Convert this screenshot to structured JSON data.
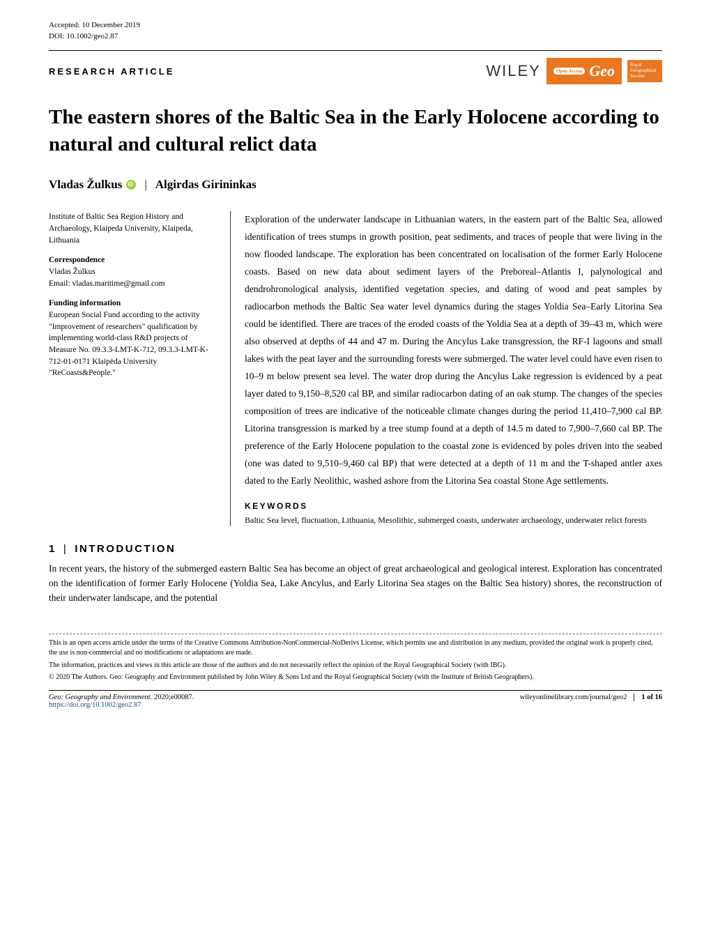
{
  "meta": {
    "accepted": "Accepted: 10 December 2019",
    "doi": "DOI: 10.1002/geo2.87",
    "article_type": "RESEARCH ARTICLE"
  },
  "brand": {
    "wiley": "WILEY",
    "open_access": "Open Access",
    "geo": "Geo",
    "rgs": "Royal Geographical Society"
  },
  "title": "The eastern shores of the Baltic Sea in the Early Holocene according to natural and cultural relict data",
  "authors": {
    "a1": "Vladas Žulkus",
    "a2": "Algirdas Girininkas"
  },
  "affiliation": "Institute of Baltic Sea Region History and Archaeology, Klaipeda University, Klaipeda, Lithuania",
  "correspondence": {
    "heading": "Correspondence",
    "name": "Vladas Žulkus",
    "email": "Email: vladas.maritime@gmail.com"
  },
  "funding": {
    "heading": "Funding information",
    "text": "European Social Fund according to the activity \"Improvement of researchers\" qualification by implementing world-class R&D projects of Measure No. 09.3.3-LMT-K-712, 09.3.3-LMT-K-712-01-0171 Klaipėda University \"ReCoasts&People.\""
  },
  "abstract": "Exploration of the underwater landscape in Lithuanian waters, in the eastern part of the Baltic Sea, allowed identification of trees stumps in growth position, peat sediments, and traces of people that were living in the now flooded landscape. The exploration has been concentrated on localisation of the former Early Holocene coasts. Based on new data about sediment layers of the Preboreal–Atlantis I, palynological and dendrohronological analysis, identified vegetation species, and dating of wood and peat samples by radiocarbon methods the Baltic Sea water level dynamics during the stages Yoldia Sea–Early Litorina Sea could be identified. There are traces of the eroded coasts of the Yoldia Sea at a depth of 39–43 m, which were also observed at depths of 44 and 47 m. During the Ancylus Lake transgression, the RF-I lagoons and small lakes with the peat layer and the surrounding forests were submerged. The water level could have even risen to 10–9 m below present sea level. The water drop during the Ancylus Lake regression is evidenced by a peat layer dated to 9,150–8,520 cal BP, and similar radiocarbon dating of an oak stump. The changes of the species composition of trees are indicative of the noticeable climate changes during the period 11,410–7,900 cal BP. Litorina transgression is marked by a tree stump found at a depth of 14.5 m dated to 7,900–7,660 cal BP. The preference of the Early Holocene population to the coastal zone is evidenced by poles driven into the seabed (one was dated to 9,510–9,460 cal BP) that were detected at a depth of 11 m and the T-shaped antler axes dated to the Early Neolithic, washed ashore from the Litorina Sea coastal Stone Age settlements.",
  "keywords_heading": "KEYWORDS",
  "keywords": "Baltic Sea level, fluctuation, Lithuania, Mesolithic, submerged coasts, underwater archaeology, underwater relict forests",
  "section1": {
    "num": "1",
    "title": "INTRODUCTION",
    "body": "In recent years, the history of the submerged eastern Baltic Sea has become an object of great archaeological and geological interest. Exploration has concentrated on the identification of former Early Holocene (Yoldia Sea, Lake Ancylus, and Early Litorina Sea stages on the Baltic Sea history) shores, the reconstruction of their underwater landscape, and the potential"
  },
  "license": {
    "line1": "This is an open access article under the terms of the Creative Commons Attribution-NonCommercial-NoDerivs License, which permits use and distribution in any medium, provided the original work is properly cited, the use is non-commercial and no modifications or adaptations are made.",
    "line2": "The information, practices and views in this article are those of the authors and do not necessarily reflect the opinion of the Royal Geographical Society (with IBG).",
    "line3": "© 2020 The Authors. Geo: Geography and Environment published by John Wiley & Sons Ltd and the Royal Geographical Society (with the Institute of British Geographers)."
  },
  "footer": {
    "journal": "Geo: Geography and Environment.",
    "issue": " 2020;e00087.",
    "doi_url": "https://doi.org/10.1002/geo2.87",
    "online": "wileyonlinelibrary.com/journal/geo2",
    "pages": "1 of 16"
  },
  "colors": {
    "accent": "#e87722",
    "orcid": "#a6ce39",
    "link": "#1a4b8c"
  }
}
